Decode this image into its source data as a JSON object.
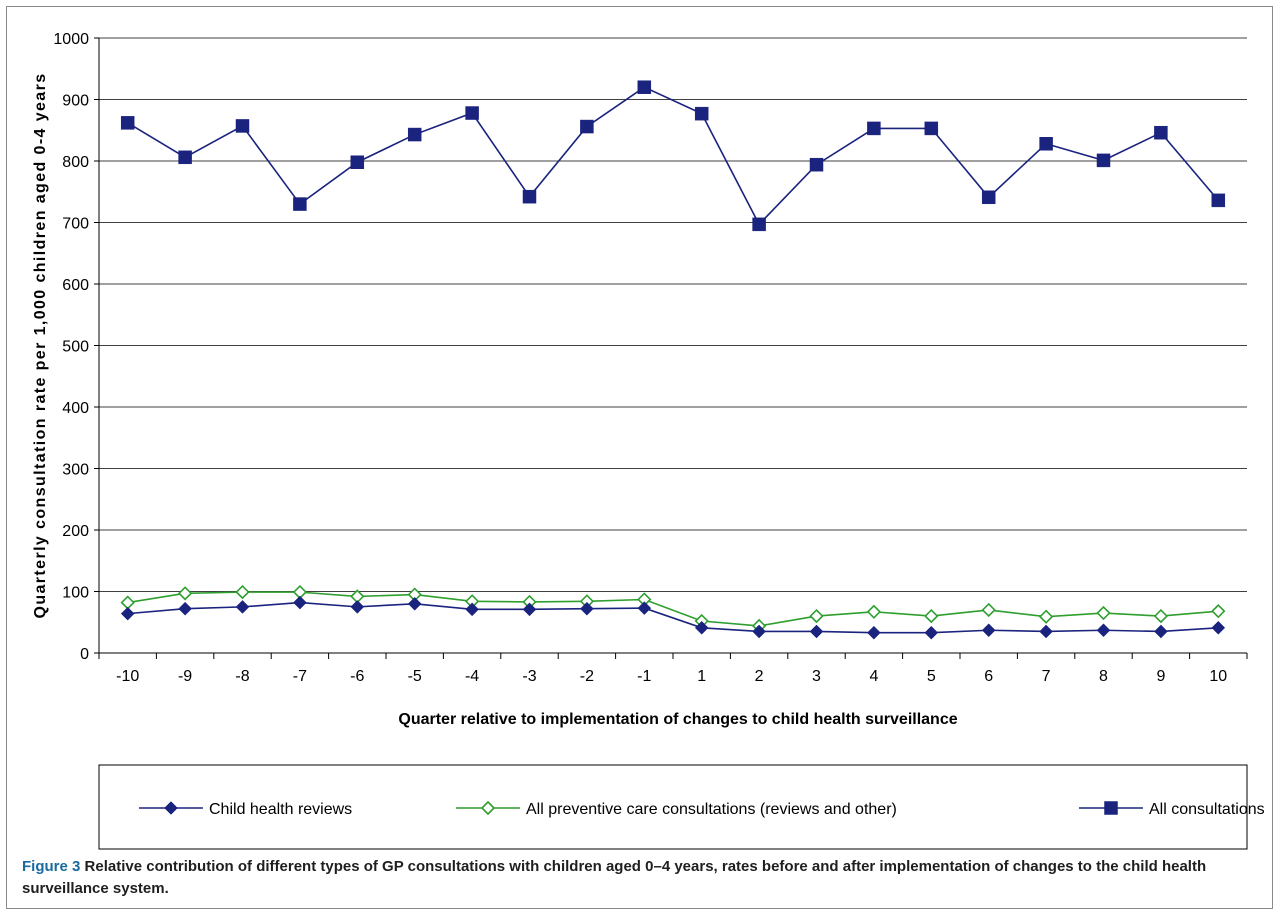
{
  "chart_data": {
    "type": "line",
    "ylabel": "Quarterly consultation rate per 1,000 children aged 0-4 years",
    "xlabel": "Quarter relative to implementation of changes to child health surveillance",
    "ylim": [
      0,
      1000
    ],
    "yticks": [
      0,
      100,
      200,
      300,
      400,
      500,
      600,
      700,
      800,
      900,
      1000
    ],
    "grid": "horizontal",
    "legend_position": "bottom",
    "categories": [
      "-10",
      "-9",
      "-8",
      "-7",
      "-6",
      "-5",
      "-4",
      "-3",
      "-2",
      "-1",
      "1",
      "2",
      "3",
      "4",
      "5",
      "6",
      "7",
      "8",
      "9",
      "10"
    ],
    "series": [
      {
        "name": "Child health reviews",
        "marker": "diamond-filled",
        "color": "#1a237e",
        "values": [
          64,
          72,
          75,
          82,
          75,
          80,
          71,
          71,
          72,
          73,
          41,
          35,
          35,
          33,
          33,
          37,
          35,
          37,
          35,
          41
        ]
      },
      {
        "name": "All preventive care consultations (reviews and other)",
        "marker": "diamond-open",
        "color": "#2e9e2e",
        "values": [
          82,
          97,
          99,
          99,
          92,
          95,
          84,
          83,
          84,
          87,
          52,
          44,
          60,
          67,
          60,
          70,
          59,
          65,
          60,
          68
        ]
      },
      {
        "name": "All consultations",
        "marker": "square-filled",
        "color": "#1a237e",
        "values": [
          862,
          806,
          857,
          730,
          798,
          843,
          878,
          742,
          856,
          920,
          877,
          697,
          794,
          853,
          853,
          741,
          828,
          801,
          846,
          736
        ]
      }
    ]
  },
  "caption": {
    "label": "Figure 3",
    "text": "Relative contribution of different types of GP consultations with children aged 0–4 years, rates before and after implementation of changes to the child health surveillance system."
  }
}
